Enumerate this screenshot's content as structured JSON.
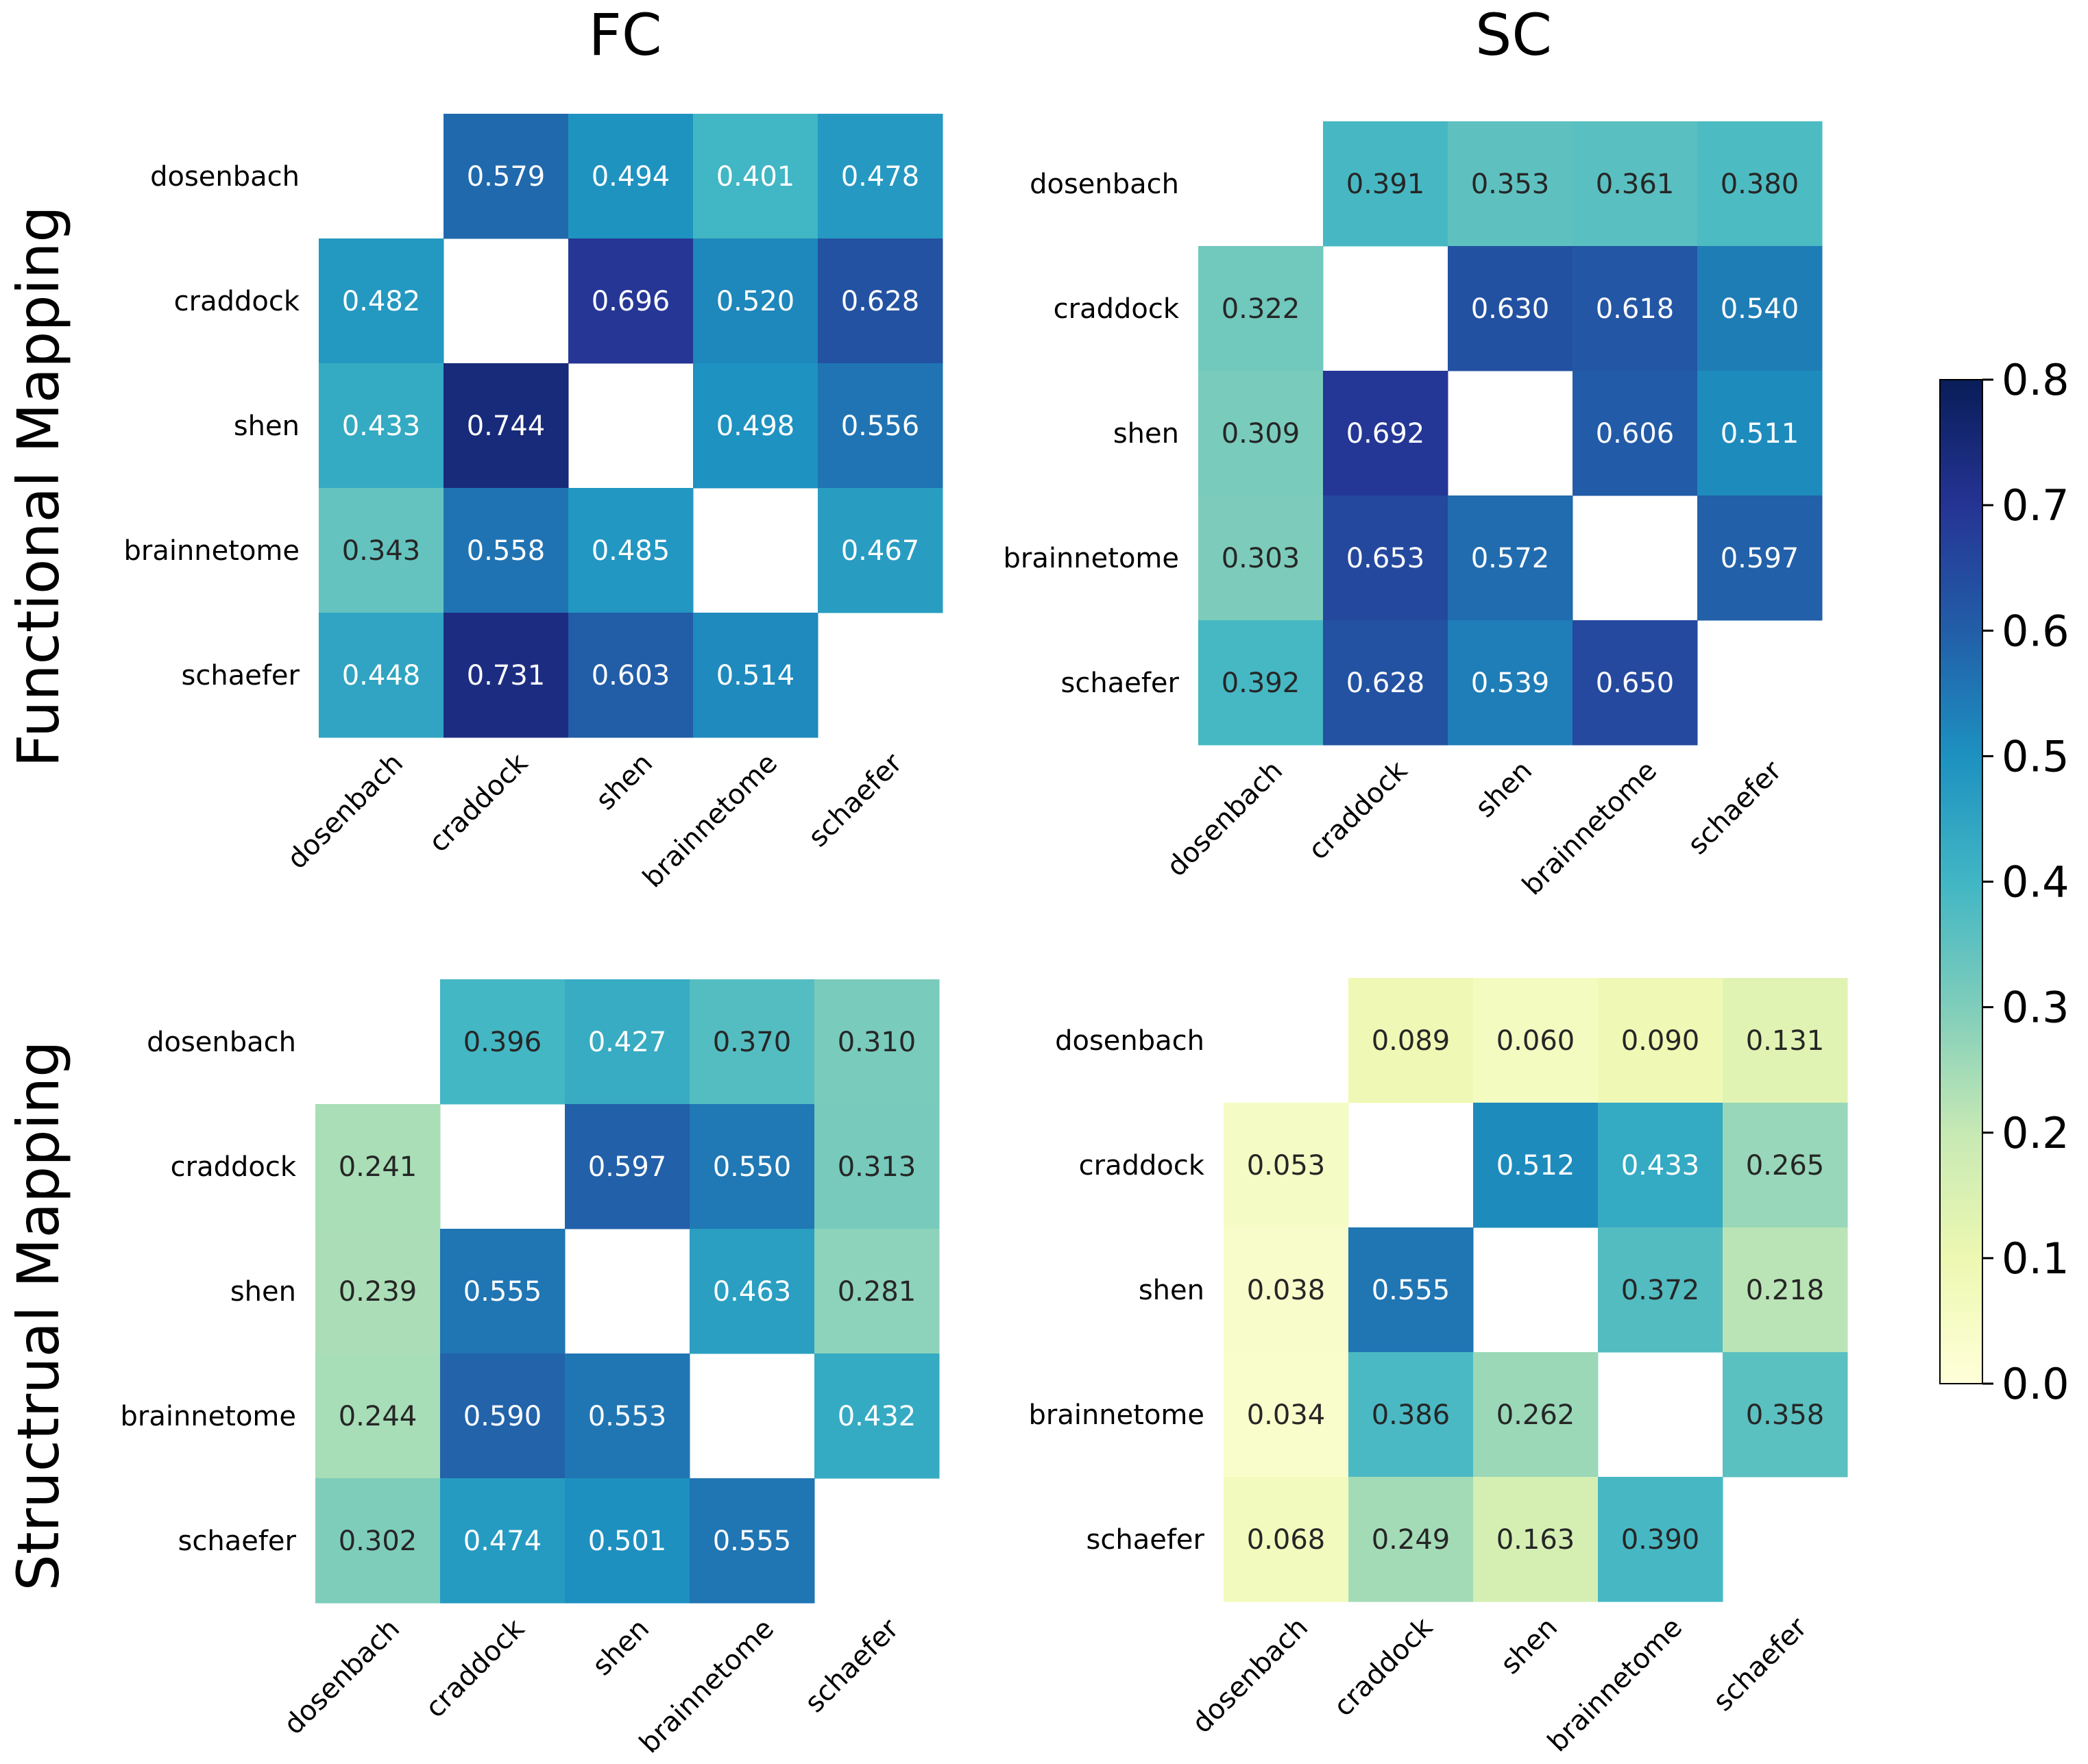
{
  "col_titles": [
    "FC",
    "SC"
  ],
  "row_titles": [
    "Functional Mapping",
    "Structrual Mapping"
  ],
  "colormap": [
    "#ffffd9",
    "#edf8b1",
    "#c7e9b4",
    "#7fcdbb",
    "#41b6c4",
    "#1d91c0",
    "#225ea8",
    "#253494",
    "#081d58"
  ],
  "chart_data": [
    {
      "type": "heatmap",
      "row_title": "Functional Mapping",
      "col_title": "FC",
      "rows": [
        "dosenbach",
        "craddock",
        "shen",
        "brainnetome",
        "schaefer"
      ],
      "cols": [
        "dosenbach",
        "craddock",
        "shen",
        "brainnetome",
        "schaefer"
      ],
      "values": [
        [
          null,
          0.579,
          0.494,
          0.401,
          0.478
        ],
        [
          0.482,
          null,
          0.696,
          0.52,
          0.628
        ],
        [
          0.433,
          0.744,
          null,
          0.498,
          0.556
        ],
        [
          0.343,
          0.558,
          0.485,
          null,
          0.467
        ],
        [
          0.448,
          0.731,
          0.603,
          0.514,
          null
        ]
      ],
      "labels": [
        [
          "",
          "0.579",
          "0.494",
          "0.401",
          "0.478"
        ],
        [
          "0.482",
          "",
          "0.696",
          "0.520",
          "0.628"
        ],
        [
          "0.433",
          "0.744",
          "",
          "0.498",
          "0.556"
        ],
        [
          "0.343",
          "0.558",
          "0.485",
          "",
          "0.467"
        ],
        [
          "0.448",
          "0.731",
          "0.603",
          "0.514",
          ""
        ]
      ]
    },
    {
      "type": "heatmap",
      "row_title": "Functional Mapping",
      "col_title": "SC",
      "rows": [
        "dosenbach",
        "craddock",
        "shen",
        "brainnetome",
        "schaefer"
      ],
      "cols": [
        "dosenbach",
        "craddock",
        "shen",
        "brainnetome",
        "schaefer"
      ],
      "values": [
        [
          null,
          0.391,
          0.353,
          0.361,
          0.38
        ],
        [
          0.322,
          null,
          0.63,
          0.618,
          0.54
        ],
        [
          0.309,
          0.692,
          null,
          0.606,
          0.511
        ],
        [
          0.303,
          0.653,
          0.572,
          null,
          0.597
        ],
        [
          0.392,
          0.628,
          0.539,
          0.65,
          null
        ]
      ],
      "labels": [
        [
          "",
          "0.391",
          "0.353",
          "0.361",
          "0.380"
        ],
        [
          "0.322",
          "",
          "0.630",
          "0.618",
          "0.540"
        ],
        [
          "0.309",
          "0.692",
          "",
          "0.606",
          "0.511"
        ],
        [
          "0.303",
          "0.653",
          "0.572",
          "",
          "0.597"
        ],
        [
          "0.392",
          "0.628",
          "0.539",
          "0.650",
          ""
        ]
      ]
    },
    {
      "type": "heatmap",
      "row_title": "Structrual Mapping",
      "col_title": "FC",
      "rows": [
        "dosenbach",
        "craddock",
        "shen",
        "brainnetome",
        "schaefer"
      ],
      "cols": [
        "dosenbach",
        "craddock",
        "shen",
        "brainnetome",
        "schaefer"
      ],
      "values": [
        [
          null,
          0.396,
          0.427,
          0.37,
          0.31
        ],
        [
          0.241,
          null,
          0.597,
          0.55,
          0.313
        ],
        [
          0.239,
          0.555,
          null,
          0.463,
          0.281
        ],
        [
          0.244,
          0.59,
          0.553,
          null,
          0.432
        ],
        [
          0.302,
          0.474,
          0.501,
          0.555,
          null
        ]
      ],
      "labels": [
        [
          "",
          "0.396",
          "0.427",
          "0.370",
          "0.310"
        ],
        [
          "0.241",
          "",
          "0.597",
          "0.550",
          "0.313"
        ],
        [
          "0.239",
          "0.555",
          "",
          "0.463",
          "0.281"
        ],
        [
          "0.244",
          "0.590",
          "0.553",
          "",
          "0.432"
        ],
        [
          "0.302",
          "0.474",
          "0.501",
          "0.555",
          ""
        ]
      ]
    },
    {
      "type": "heatmap",
      "row_title": "Structrual Mapping",
      "col_title": "SC",
      "rows": [
        "dosenbach",
        "craddock",
        "shen",
        "brainnetome",
        "schaefer"
      ],
      "cols": [
        "dosenbach",
        "craddock",
        "shen",
        "brainnetome",
        "schaefer"
      ],
      "values": [
        [
          null,
          0.089,
          0.06,
          0.09,
          0.131
        ],
        [
          0.053,
          null,
          0.512,
          0.433,
          0.265
        ],
        [
          0.038,
          0.555,
          null,
          0.372,
          0.218
        ],
        [
          0.034,
          0.386,
          0.262,
          null,
          0.358
        ],
        [
          0.068,
          0.249,
          0.163,
          0.39,
          null
        ]
      ],
      "labels": [
        [
          "",
          "0.089",
          "0.060",
          "0.090",
          "0.131"
        ],
        [
          "0.053",
          "",
          "0.512",
          "0.433",
          "0.265"
        ],
        [
          "0.038",
          "0.555",
          "",
          "0.372",
          "0.218"
        ],
        [
          "0.034",
          "0.386",
          "0.262",
          "",
          "0.358"
        ],
        [
          "0.068",
          "0.249",
          "0.163",
          "0.390",
          ""
        ]
      ]
    }
  ],
  "colorbar": {
    "range": [
      0.0,
      0.8
    ],
    "ticks": [
      0.0,
      0.1,
      0.2,
      0.3,
      0.4,
      0.5,
      0.6,
      0.7,
      0.8
    ],
    "tick_labels": [
      "0.0",
      "0.1",
      "0.2",
      "0.3",
      "0.4",
      "0.5",
      "0.6",
      "0.7",
      "0.8"
    ]
  }
}
